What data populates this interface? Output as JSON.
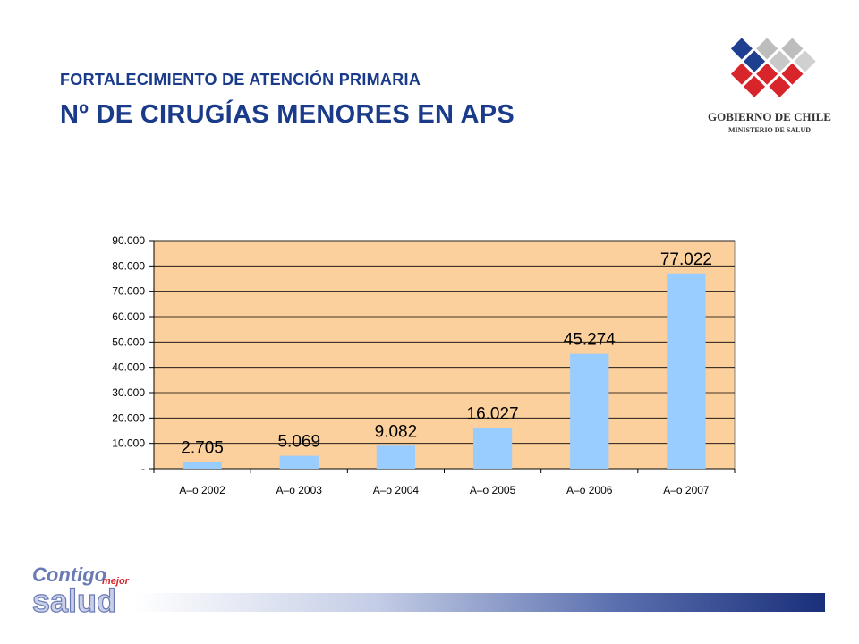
{
  "header": {
    "subtitle": "FORTALECIMIENTO DE ATENCIÓN PRIMARIA",
    "title": "Nº DE CIRUGÍAS MENORES EN APS"
  },
  "logos": {
    "government": {
      "line1": "GOBIERNO DE CHILE",
      "line2": "MINISTERIO DE SALUD"
    },
    "campaign": {
      "word1": "Contigo",
      "word2": "mejor",
      "word3": "salud"
    }
  },
  "colors": {
    "title": "#1a3a8a",
    "plot_background": "#fcd09c",
    "bar": "#99ccff",
    "footer_dark": "#1a2f7a"
  },
  "chart_data": {
    "type": "bar",
    "categories": [
      "A–o 2002",
      "A–o 2003",
      "A–o 2004",
      "A–o 2005",
      "A–o 2006",
      "A–o 2007"
    ],
    "values": [
      2705,
      5069,
      9082,
      16027,
      45274,
      77022
    ],
    "data_labels": [
      "2.705",
      "5.069",
      "9.082",
      "16.027",
      "45.274",
      "77.022"
    ],
    "y_ticks": [
      0,
      10000,
      20000,
      30000,
      40000,
      50000,
      60000,
      70000,
      80000,
      90000
    ],
    "y_tick_labels": [
      "-",
      "10.000",
      "20.000",
      "30.000",
      "40.000",
      "50.000",
      "60.000",
      "70.000",
      "80.000",
      "90.000"
    ],
    "ylim": [
      0,
      90000
    ],
    "grid": true,
    "legend": "none"
  }
}
